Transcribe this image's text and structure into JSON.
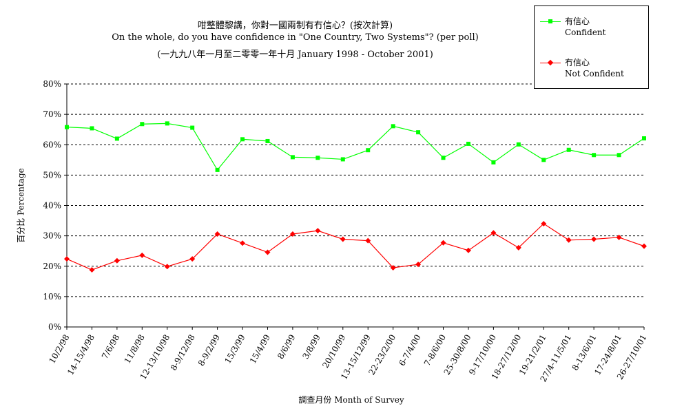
{
  "chart_data": {
    "type": "line",
    "title": "咁整體黎講，你對一國兩制有冇信心？(按次計算)",
    "subtitle": "On the whole, do you have confidence in \"One Country, Two Systems\"? (per poll)",
    "subtitle2": "(一九九八年一月至二零零一年十月 January 1998 - October 2001)",
    "xlabel": "調查月份 Month of Survey",
    "ylabel": "百分比 Percentage",
    "ylim": [
      0,
      80
    ],
    "yticks": [
      "0%",
      "10%",
      "20%",
      "30%",
      "40%",
      "50%",
      "60%",
      "70%",
      "80%"
    ],
    "grid": true,
    "legend_position": "top-right",
    "categories": [
      "10/2/98",
      "14-15/4/98",
      "7/6/98",
      "11/8/98",
      "12-13/10/98",
      "8-9/12/98",
      "8-9/2/99",
      "15/3/99",
      "15/4/99",
      "8/6/99",
      "3/8/99",
      "20/10/99",
      "13-15/12/99",
      "22-23/2/00",
      "6-7/4/00",
      "7-8/6/00",
      "25-30/8/00",
      "9-17/10/00",
      "18-27/12/00",
      "19-21/2/01",
      "27/4-11/5/01",
      "8-13/6/01",
      "17-24/8/01",
      "26-27/10/01"
    ],
    "series": [
      {
        "name": "有信心",
        "name_en": "Confident",
        "color": "#00ff00",
        "marker": "square",
        "values": [
          65.8,
          65.4,
          62.0,
          66.8,
          67.0,
          65.6,
          51.7,
          61.8,
          61.2,
          55.9,
          55.7,
          55.2,
          58.2,
          66.1,
          64.1,
          55.7,
          60.3,
          54.2,
          60.1,
          55.0,
          58.3,
          56.6,
          56.6,
          62.1
        ]
      },
      {
        "name": "冇信心",
        "name_en": "Not Confident",
        "color": "#ff0000",
        "marker": "diamond",
        "values": [
          22.4,
          18.8,
          21.8,
          23.6,
          19.9,
          22.4,
          30.6,
          27.6,
          24.6,
          30.6,
          31.7,
          28.9,
          28.4,
          19.5,
          20.6,
          27.7,
          25.2,
          31.0,
          26.1,
          34.0,
          28.6,
          28.9,
          29.5,
          26.6
        ]
      }
    ]
  }
}
